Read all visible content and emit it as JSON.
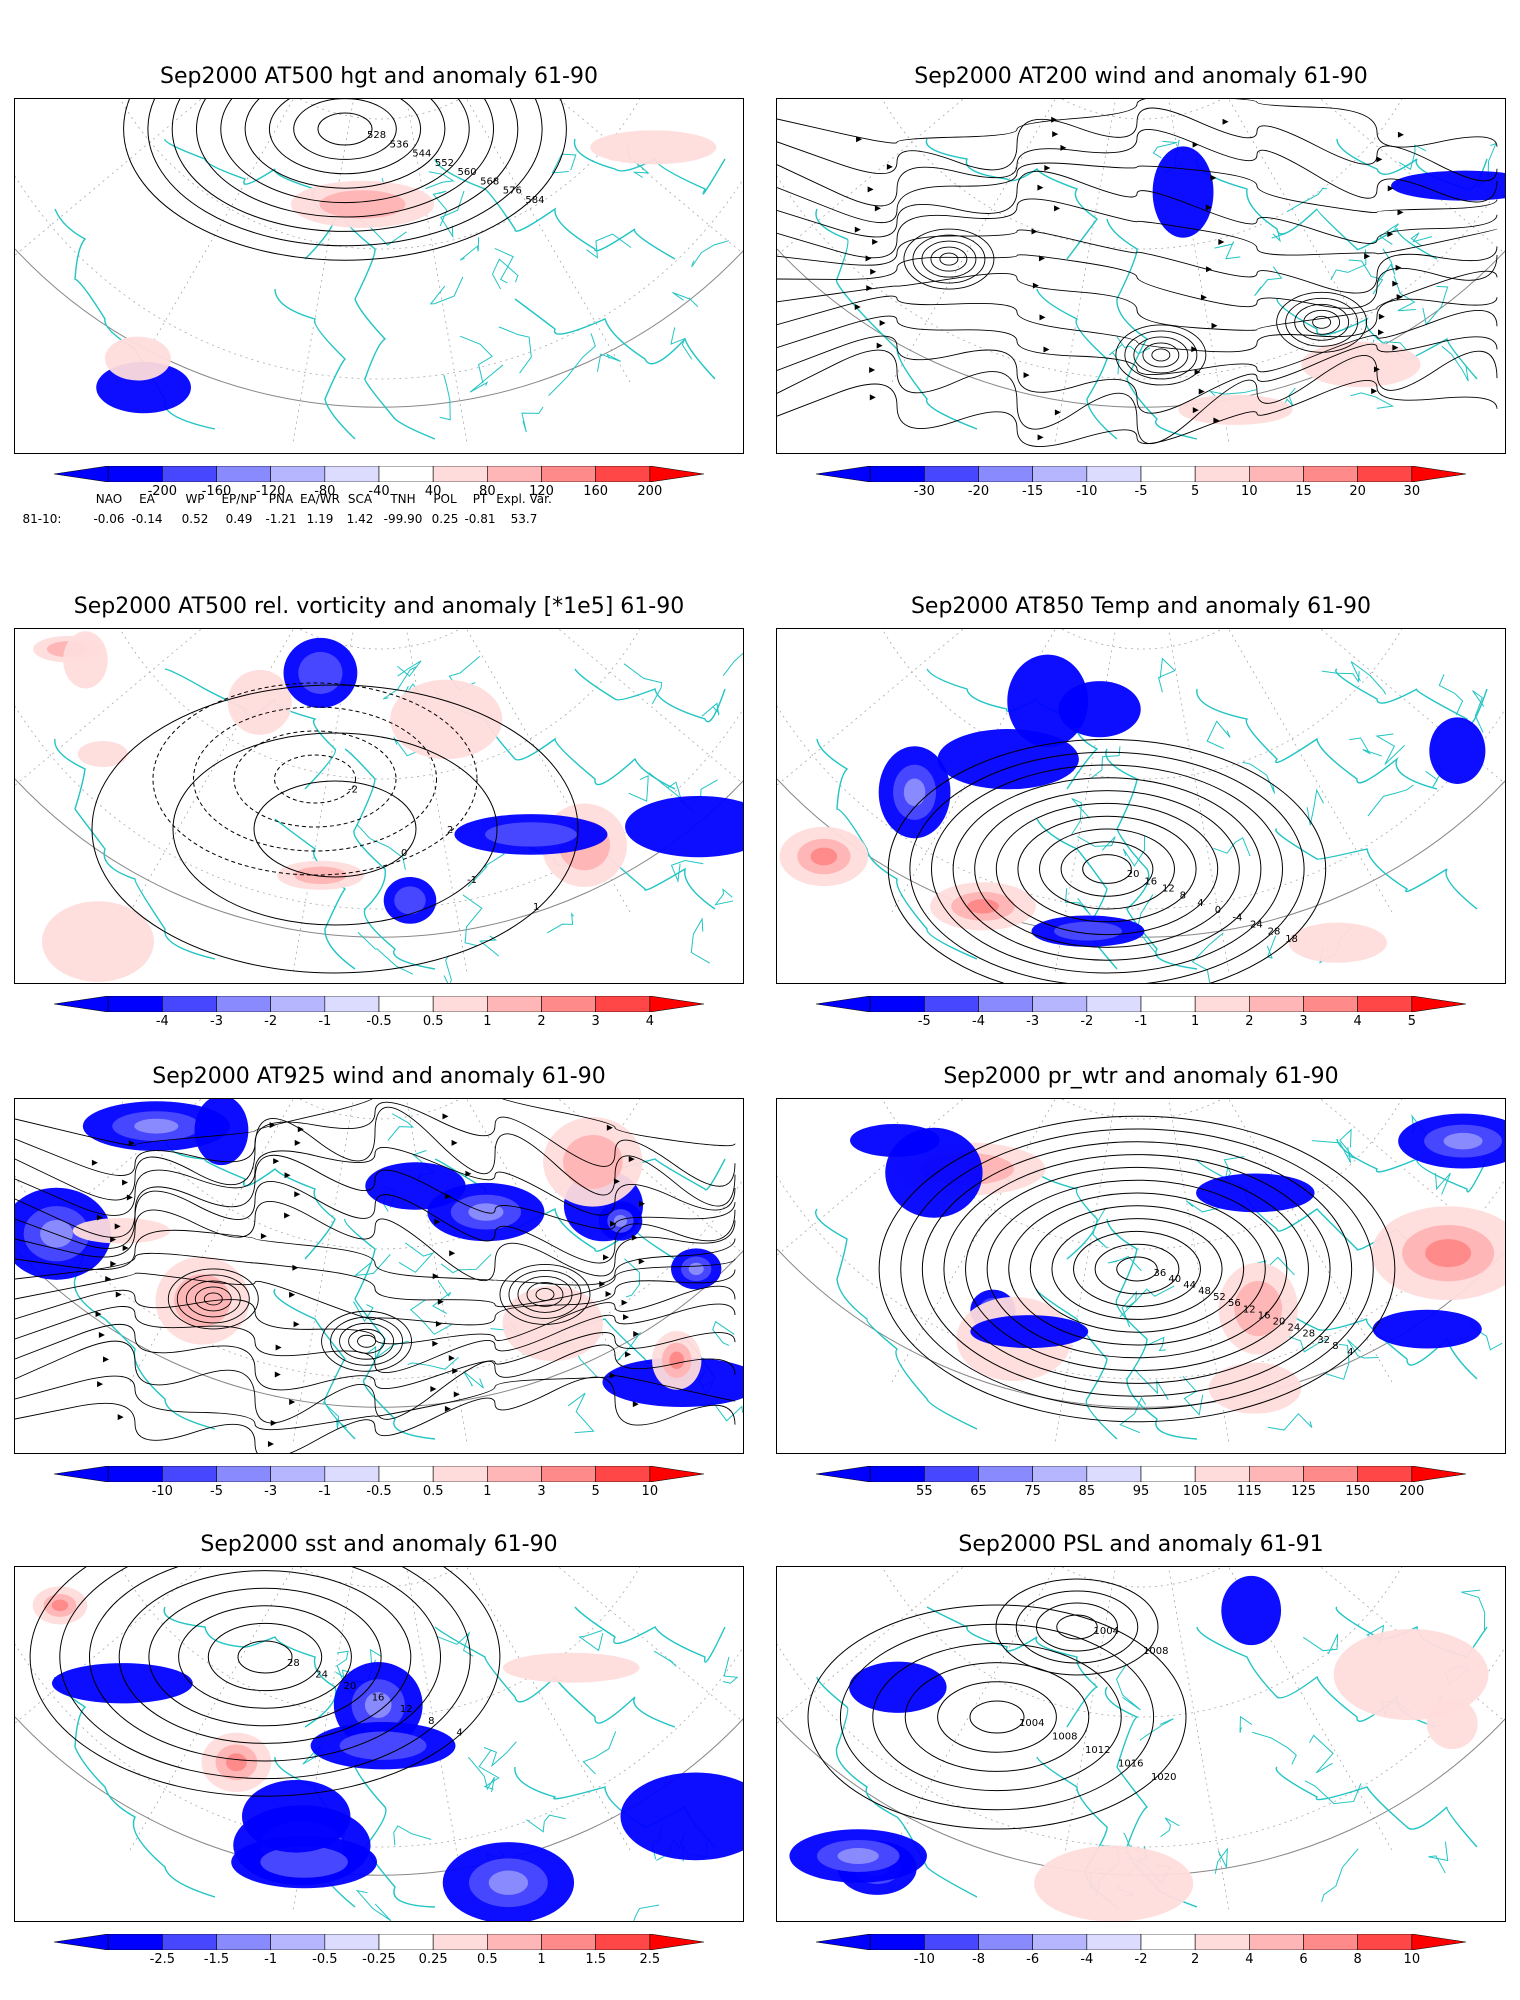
{
  "colors": {
    "coast": "#22c4c4",
    "contour": "#000000",
    "neg": [
      "#0000ff",
      "#4747ff",
      "#8a8aff",
      "#b6b6ff",
      "#dcdcff"
    ],
    "pos": [
      "#ffdcdc",
      "#ffb6b6",
      "#ff8a8a",
      "#ff4747",
      "#ff0000"
    ]
  },
  "panels": [
    {
      "id": "p1",
      "title": "Sep2000 AT500 hgt and anomaly 61-90",
      "ticks": [
        "-200",
        "-160",
        "-120",
        "-80",
        "-40",
        "40",
        "80",
        "120",
        "160",
        "200"
      ],
      "labels": [
        "528",
        "536",
        "544",
        "552",
        "560",
        "568",
        "576",
        "584"
      ],
      "field": "height"
    },
    {
      "id": "p2",
      "title": "Sep2000 AT200 wind and anomaly 61-90",
      "ticks": [
        "-30",
        "-20",
        "-15",
        "-10",
        "-5",
        "5",
        "10",
        "15",
        "20",
        "30"
      ],
      "labels": [],
      "field": "wind"
    },
    {
      "id": "p3",
      "title": "Sep2000 AT500 rel. vorticity and anomaly [*1e5] 61-90",
      "ticks": [
        "-4",
        "-3",
        "-2",
        "-1",
        "-0.5",
        "0.5",
        "1",
        "2",
        "3",
        "4"
      ],
      "labels": [
        "0",
        "-1",
        "1",
        "-2",
        "2"
      ],
      "field": "vort"
    },
    {
      "id": "p4",
      "title": "Sep2000 AT850 Temp and anomaly 61-90",
      "ticks": [
        "-5",
        "-4",
        "-3",
        "-2",
        "-1",
        "1",
        "2",
        "3",
        "4",
        "5"
      ],
      "labels": [
        "20",
        "16",
        "12",
        "8",
        "4",
        "0",
        "-4",
        "24",
        "28",
        "18"
      ],
      "field": "temp"
    },
    {
      "id": "p5",
      "title": "Sep2000 AT925 wind and anomaly 61-90",
      "ticks": [
        "-10",
        "-5",
        "-3",
        "-1",
        "-0.5",
        "0.5",
        "1",
        "3",
        "5",
        "10"
      ],
      "labels": [],
      "field": "wind925"
    },
    {
      "id": "p6",
      "title": "Sep2000 pr_wtr and anomaly 61-90",
      "ticks": [
        "55",
        "65",
        "75",
        "85",
        "95",
        "105",
        "115",
        "125",
        "150",
        "200"
      ],
      "labels": [
        "36",
        "40",
        "44",
        "48",
        "52",
        "56",
        "12",
        "16",
        "20",
        "24",
        "28",
        "32",
        "8",
        "4"
      ],
      "field": "prwtr"
    },
    {
      "id": "p7",
      "title": "Sep2000 sst and anomaly 61-90",
      "ticks": [
        "-2.5",
        "-1.5",
        "-1",
        "-0.5",
        "-0.25",
        "0.25",
        "0.5",
        "1",
        "1.5",
        "2.5"
      ],
      "labels": [
        "28",
        "24",
        "20",
        "16",
        "12",
        "8",
        "4"
      ],
      "field": "sst"
    },
    {
      "id": "p8",
      "title": "Sep2000 PSL and anomaly 61-91",
      "ticks": [
        "-10",
        "-8",
        "-6",
        "-4",
        "-2",
        "2",
        "4",
        "6",
        "8",
        "10"
      ],
      "labels": [
        "1004",
        "1008",
        "1012",
        "1016",
        "1020"
      ],
      "field": "psl"
    }
  ],
  "teleconnection": {
    "headers": [
      "NAO",
      "EA",
      "WP",
      "EP/NP",
      "PNA",
      "EA/WR",
      "SCA",
      "TNH",
      "POL",
      "PT",
      "Expl. Var."
    ],
    "row_label": "81-10:",
    "values": [
      "-0.06",
      "-0.14",
      "0.52",
      "0.49",
      "-1.21",
      "1.19",
      "1.42",
      "-99.90",
      "0.25",
      "-0.81",
      "53.7"
    ]
  }
}
